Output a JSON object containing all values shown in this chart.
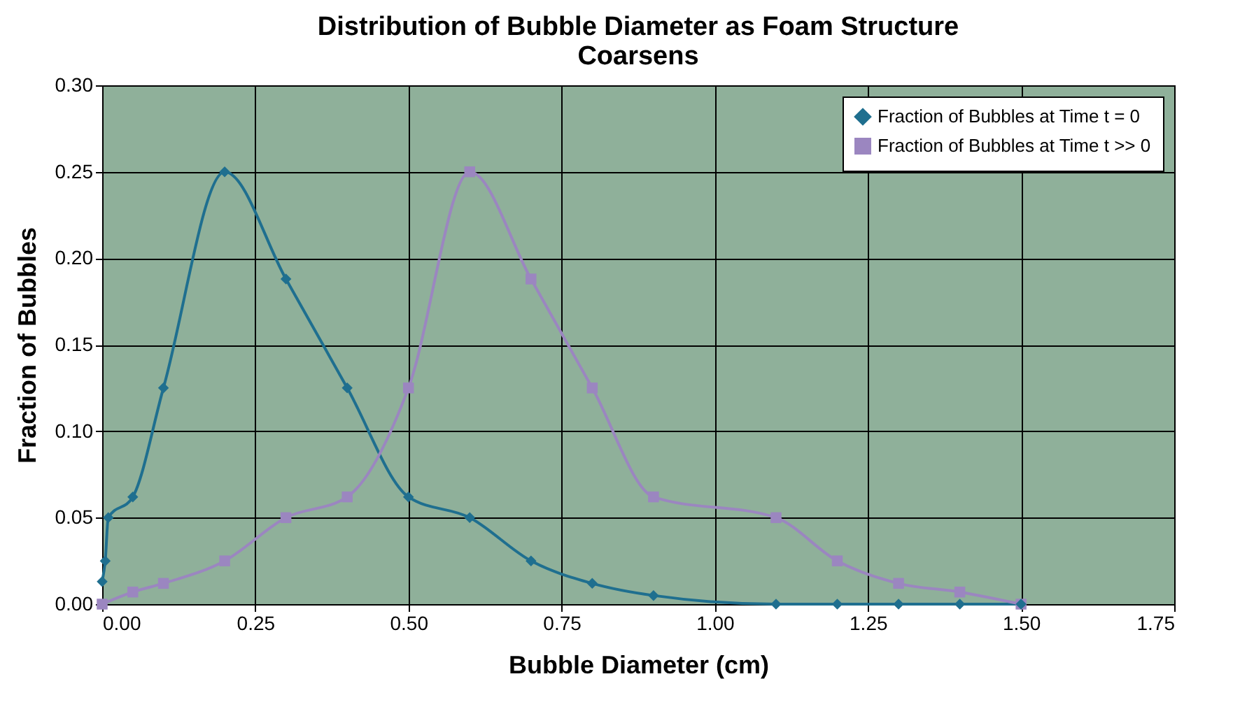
{
  "chart_data": {
    "type": "line",
    "title": [
      "Distribution of Bubble Diameter as Foam Structure",
      "Coarsens"
    ],
    "xlabel": "Bubble Diameter (cm)",
    "ylabel": "Fraction of Bubbles",
    "xlim": [
      0,
      1.75
    ],
    "xticks": [
      {
        "value": 0,
        "label": "0.00"
      },
      0.25,
      {
        "value": 0.5,
        "label": "0.50"
      },
      0.75,
      {
        "value": 1,
        "label": "1.00"
      },
      1.25,
      {
        "value": 1.5,
        "label": "1.50"
      },
      1.75
    ],
    "ylim": [
      0,
      0.3
    ],
    "yticks": [
      {
        "value": 0,
        "label": "0.00"
      },
      0.05,
      {
        "value": 0.1,
        "label": "0.10"
      },
      0.15,
      {
        "value": 0.2,
        "label": "0.20"
      },
      0.25,
      {
        "value": 0.3,
        "label": "0.30"
      }
    ],
    "grid": true,
    "legend": "top right",
    "line_style": "solid",
    "series": [
      {
        "name": "Fraction of Bubbles at Time t = 0",
        "color": "#1f6f8f",
        "marker": "diamond",
        "x": [
          0,
          0.005,
          0.01,
          0.05,
          0.1,
          0.2,
          0.3,
          0.4,
          0.5,
          0.6,
          0.7,
          0.8,
          0.9,
          1.1,
          1.2,
          1.3,
          1.4,
          1.5
        ],
        "values": [
          0.013,
          0.025,
          0.05,
          0.062,
          0.125,
          0.25,
          0.188,
          0.125,
          0.062,
          0.05,
          0.025,
          0.012,
          0.005,
          0,
          0,
          0,
          0,
          0
        ]
      },
      {
        "name": "Fraction of Bubbles at Time t >> 0",
        "color": "#9b86c0",
        "marker": "square",
        "x": [
          0,
          0.05,
          0.1,
          0.2,
          0.3,
          0.4,
          0.5,
          0.6,
          0.7,
          0.8,
          0.9,
          1.1,
          1.2,
          1.3,
          1.4,
          1.5
        ],
        "values": [
          0,
          0.007,
          0.012,
          0.025,
          0.05,
          0.062,
          0.125,
          0.25,
          0.188,
          0.125,
          0.062,
          0.05,
          0.025,
          0.012,
          0.007,
          0
        ]
      }
    ]
  }
}
